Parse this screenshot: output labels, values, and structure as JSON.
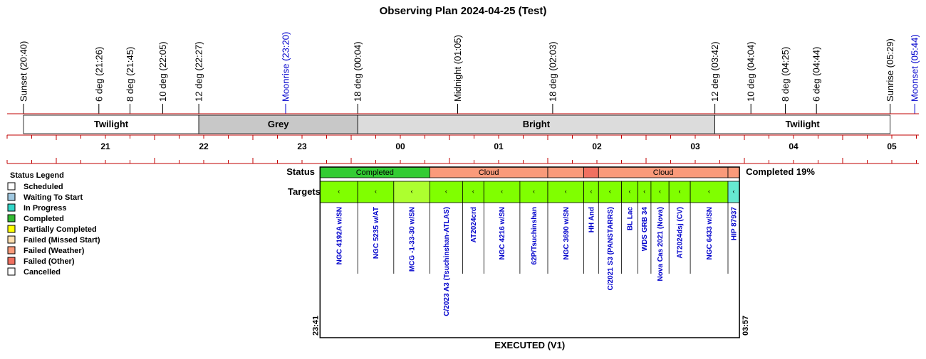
{
  "title": "Observing Plan 2024-04-25 (Test)",
  "colors": {
    "timeline": "#c00000",
    "event_black": "#000000",
    "event_blue": "#0000cc",
    "target_text": "#0000cc",
    "band_grey": "#c8c8c8",
    "band_bright": "#dcdcdc",
    "band_twilight": "#ffffff"
  },
  "chart_data": {
    "type": "timeline",
    "time_axis": {
      "start": "20:30",
      "end": "05:55",
      "hour_labels": [
        "21",
        "22",
        "23",
        "00",
        "01",
        "02",
        "03",
        "04",
        "05"
      ]
    },
    "events": [
      {
        "label": "Sunset (20:40)",
        "time": "20:40",
        "color": "black"
      },
      {
        "label": "6 deg (21:26)",
        "time": "21:26",
        "color": "black"
      },
      {
        "label": "8 deg (21:45)",
        "time": "21:45",
        "color": "black"
      },
      {
        "label": "10 deg (22:05)",
        "time": "22:05",
        "color": "black"
      },
      {
        "label": "12 deg (22:27)",
        "time": "22:27",
        "color": "black"
      },
      {
        "label": "Moonrise (23:20)",
        "time": "23:20",
        "color": "blue"
      },
      {
        "label": "18 deg (00:04)",
        "time": "00:04",
        "color": "black"
      },
      {
        "label": "Midnight (01:05)",
        "time": "01:05",
        "color": "black"
      },
      {
        "label": "18 deg (02:03)",
        "time": "02:03",
        "color": "black"
      },
      {
        "label": "12 deg (03:42)",
        "time": "03:42",
        "color": "black"
      },
      {
        "label": "10 deg (04:04)",
        "time": "04:04",
        "color": "black"
      },
      {
        "label": "8 deg (04:25)",
        "time": "04:25",
        "color": "black"
      },
      {
        "label": "6 deg (04:44)",
        "time": "04:44",
        "color": "black"
      },
      {
        "label": "Sunrise (05:29)",
        "time": "05:29",
        "color": "black"
      },
      {
        "label": "Moonset (05:44)",
        "time": "05:44",
        "color": "blue"
      }
    ],
    "sky_bands": [
      {
        "label": "Twilight",
        "start": "20:40",
        "end": "22:27",
        "kind": "twilight"
      },
      {
        "label": "Grey",
        "start": "22:27",
        "end": "00:04",
        "kind": "grey"
      },
      {
        "label": "Bright",
        "start": "00:04",
        "end": "03:42",
        "kind": "bright"
      },
      {
        "label": "Twilight",
        "start": "03:42",
        "end": "05:29",
        "kind": "twilight"
      }
    ],
    "execution": {
      "start_label": "23:41",
      "end_label": "03:57",
      "completed_text": "Completed 19%",
      "footer": "EXECUTED (V1)",
      "status_row_label": "Status",
      "targets_row_label": "Targets",
      "status_segments": [
        {
          "label": "Completed",
          "start": "23:41",
          "end": "00:48",
          "color": "#33cc33"
        },
        {
          "label": "Cloud",
          "start": "00:48",
          "end": "02:00",
          "color": "#fa9a7a"
        },
        {
          "label": "",
          "start": "02:00",
          "end": "02:22",
          "color": "#fa9a7a"
        },
        {
          "label": "",
          "start": "02:22",
          "end": "02:31",
          "color": "#f07060"
        },
        {
          "label": "Cloud",
          "start": "02:31",
          "end": "03:50",
          "color": "#fa9a7a"
        },
        {
          "label": "",
          "start": "03:50",
          "end": "03:57",
          "color": "#fa9a7a"
        }
      ],
      "targets": [
        {
          "name": "NGC 4192A w/SN",
          "start": "23:41",
          "end": "00:04",
          "color": "#80ff00"
        },
        {
          "name": "NGC 5235 w/AT",
          "start": "00:04",
          "end": "00:26",
          "color": "#80ff00"
        },
        {
          "name": "MCG -1-33-30 w/SN",
          "start": "00:26",
          "end": "00:48",
          "color": "#adff2f"
        },
        {
          "name": "C/2023 A3 (Tsuchinshan-ATLAS)",
          "start": "00:48",
          "end": "01:08",
          "color": "#80ff00"
        },
        {
          "name": "AT2024crd",
          "start": "01:08",
          "end": "01:21",
          "color": "#80ff00"
        },
        {
          "name": "NGC 4216 w/SN",
          "start": "01:21",
          "end": "01:43",
          "color": "#80ff00"
        },
        {
          "name": "62P/Tsuchinshan",
          "start": "01:43",
          "end": "02:00",
          "color": "#80ff00"
        },
        {
          "name": "NGC 3690 w/SN",
          "start": "02:00",
          "end": "02:22",
          "color": "#80ff00"
        },
        {
          "name": "HH And",
          "start": "02:22",
          "end": "02:31",
          "color": "#80ff00"
        },
        {
          "name": "C/2021 S3 (PANSTARRS)",
          "start": "02:31",
          "end": "02:45",
          "color": "#80ff00"
        },
        {
          "name": "BL Lac",
          "start": "02:45",
          "end": "02:55",
          "color": "#80ff00"
        },
        {
          "name": "WDS GRB 34",
          "start": "02:55",
          "end": "03:03",
          "color": "#80ff00"
        },
        {
          "name": "Nova Cas 2021 (Nova)",
          "start": "03:03",
          "end": "03:14",
          "color": "#80ff00"
        },
        {
          "name": "AT2024dsj (CV)",
          "start": "03:14",
          "end": "03:27",
          "color": "#80ff00"
        },
        {
          "name": "NGC 6433 w/SN",
          "start": "03:27",
          "end": "03:50",
          "color": "#80ff00"
        },
        {
          "name": "HIP 87937",
          "start": "03:50",
          "end": "03:57",
          "color": "#66e8d0"
        }
      ]
    }
  },
  "legend": {
    "title": "Status Legend",
    "items": [
      {
        "label": "Scheduled",
        "color": "#ffffff"
      },
      {
        "label": "Waiting To Start",
        "color": "#a0c8e0"
      },
      {
        "label": "In Progress",
        "color": "#33d6c8"
      },
      {
        "label": "Completed",
        "color": "#33bb33"
      },
      {
        "label": "Partially Completed",
        "color": "#ffff00"
      },
      {
        "label": "Failed (Missed Start)",
        "color": "#ffe0b0"
      },
      {
        "label": "Failed (Weather)",
        "color": "#fa9a7a"
      },
      {
        "label": "Failed (Other)",
        "color": "#f07060"
      },
      {
        "label": "Cancelled",
        "color": "#ffffff"
      }
    ]
  }
}
